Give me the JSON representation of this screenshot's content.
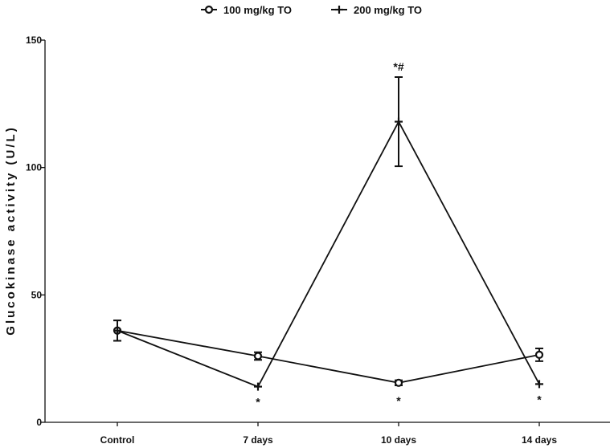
{
  "chart_data": {
    "type": "line",
    "title": "",
    "xlabel": "",
    "ylabel": "Glucokinase activity (U/L)",
    "categories": [
      "Control",
      "7 days",
      "10 days",
      "14 days"
    ],
    "ylim": [
      0,
      150
    ],
    "yticks": [
      0,
      50,
      100,
      150
    ],
    "grid": false,
    "legend_position": "top-center",
    "series": [
      {
        "name": "100 mg/kg TO",
        "marker": "circle",
        "values": [
          36,
          26,
          15.5,
          26.5
        ],
        "errors": [
          4,
          1.5,
          1,
          2.5
        ]
      },
      {
        "name": "200 mg/kg TO",
        "marker": "plus",
        "values": [
          36,
          14,
          118,
          15
        ],
        "errors": [
          4,
          0,
          17.5,
          0
        ]
      }
    ],
    "annotations": [
      {
        "category": "7 days",
        "text": "*"
      },
      {
        "category": "10 days",
        "text": "*#"
      },
      {
        "category": "10 days",
        "text": "*"
      },
      {
        "category": "14 days",
        "text": "*"
      }
    ],
    "colors": {
      "line": "#111111",
      "background": "#ffffff"
    }
  }
}
